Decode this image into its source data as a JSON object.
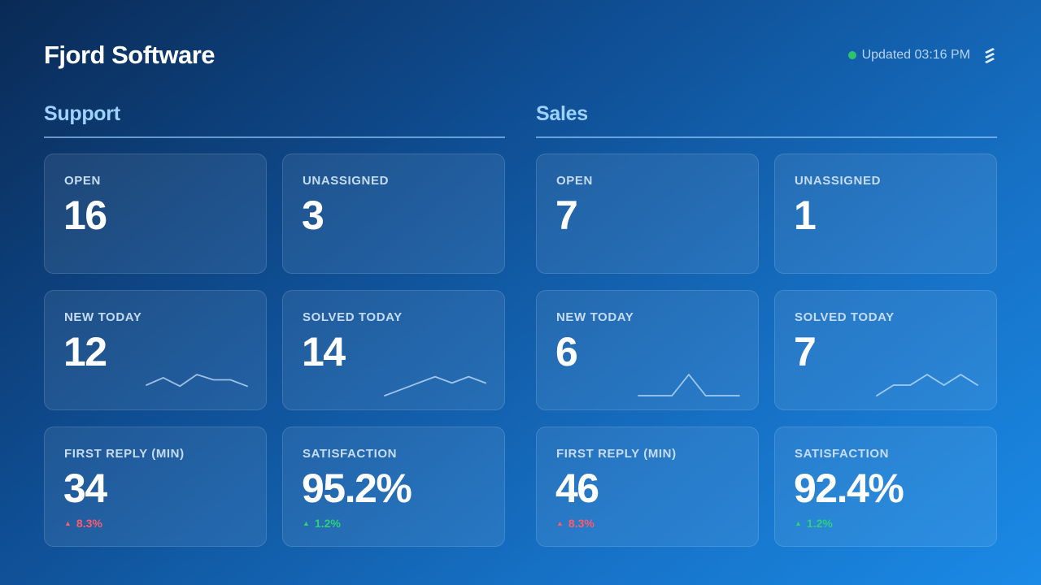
{
  "header": {
    "title": "Fjord Software",
    "updated_text": "Updated 03:16 PM",
    "status_color": "#2fc46a",
    "logo_icon": "stacked-stripes-logo-icon"
  },
  "sections": {
    "support": {
      "title": "Support",
      "open": {
        "label": "OPEN",
        "value": "16"
      },
      "unassigned": {
        "label": "UNASSIGNED",
        "value": "3"
      },
      "new_today": {
        "label": "NEW TODAY",
        "value": "12",
        "trend": [
          0.5,
          0.85,
          0.45,
          1.0,
          0.75,
          0.75,
          0.45
        ]
      },
      "solved_today": {
        "label": "SOLVED TODAY",
        "value": "14",
        "trend": [
          0.0,
          0.3,
          0.6,
          0.9,
          0.6,
          0.9,
          0.6
        ]
      },
      "first_reply": {
        "label": "FIRST REPLY (MIN)",
        "value": "34",
        "delta": "8.3%",
        "delta_direction": "up",
        "delta_color": "#ff5a6e"
      },
      "satisfaction": {
        "label": "SATISFACTION",
        "value": "95.2%",
        "delta": "1.2%",
        "delta_direction": "up",
        "delta_color": "#2fd07a"
      }
    },
    "sales": {
      "title": "Sales",
      "open": {
        "label": "OPEN",
        "value": "7"
      },
      "unassigned": {
        "label": "UNASSIGNED",
        "value": "1"
      },
      "new_today": {
        "label": "NEW TODAY",
        "value": "6",
        "trend": [
          0.0,
          0.0,
          0.0,
          1.0,
          0.0,
          0.0,
          0.0
        ]
      },
      "solved_today": {
        "label": "SOLVED TODAY",
        "value": "7",
        "trend": [
          0.0,
          0.5,
          0.5,
          1.0,
          0.5,
          1.0,
          0.5
        ]
      },
      "first_reply": {
        "label": "FIRST REPLY (MIN)",
        "value": "46",
        "delta": "8.3%",
        "delta_direction": "up",
        "delta_color": "#ff5a6e"
      },
      "satisfaction": {
        "label": "SATISFACTION",
        "value": "92.4%",
        "delta": "1.2%",
        "delta_direction": "up",
        "delta_color": "#2fd07a"
      }
    }
  }
}
